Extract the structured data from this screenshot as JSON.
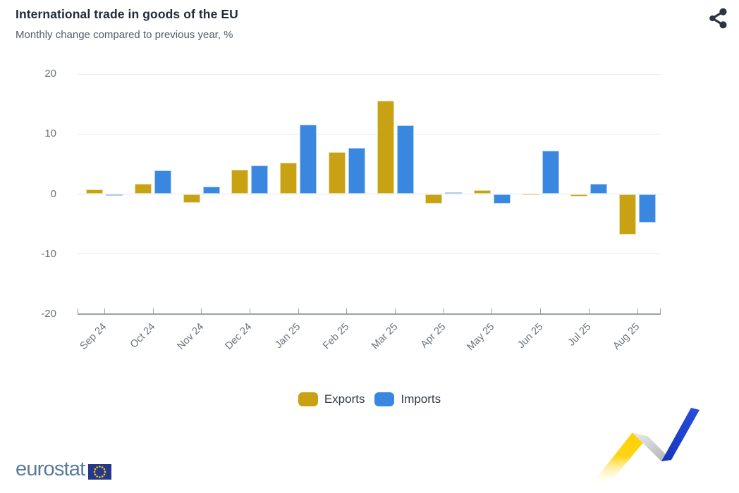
{
  "header": {
    "title": "International trade in goods of the EU",
    "subtitle": "Monthly change compared to previous year, %"
  },
  "icons": {
    "share": "share-icon",
    "eu_flag": "eu-flag-icon",
    "trend_ribbon": "trend-ribbon-graphic"
  },
  "chart_data": {
    "type": "bar",
    "categories": [
      "Sep 24",
      "Oct 24",
      "Nov 24",
      "Dec 24",
      "Jan 25",
      "Feb 25",
      "Mar 25",
      "Apr 25",
      "May 25",
      "Jun 25",
      "Jul 25",
      "Aug 25"
    ],
    "series": [
      {
        "name": "Exports",
        "color": "#C9A213",
        "border_color": "#E9DDA2",
        "values": [
          0.8,
          1.7,
          -1.5,
          4.1,
          5.2,
          7.0,
          15.6,
          -1.6,
          0.6,
          0.1,
          -0.4,
          -6.7
        ]
      },
      {
        "name": "Imports",
        "color": "#3A87E0",
        "border_color": "#AFCFF3",
        "values": [
          -0.3,
          3.9,
          1.2,
          4.8,
          11.6,
          7.7,
          11.4,
          0.3,
          -1.6,
          7.2,
          1.7,
          -4.8
        ]
      }
    ],
    "title": "International trade in goods of the EU",
    "subtitle": "Monthly change compared to previous year, %",
    "xlabel": "",
    "ylabel": "",
    "ylim": [
      -20,
      20
    ],
    "yticks": [
      20,
      10,
      0,
      -10,
      -20
    ],
    "grid": true,
    "legend_position": "bottom",
    "colors": {
      "grid_line": "#e3e8f1",
      "axis_line": "#9aa1a9",
      "axis_text": "#6b737d"
    }
  },
  "footer": {
    "brand": "eurostat"
  }
}
